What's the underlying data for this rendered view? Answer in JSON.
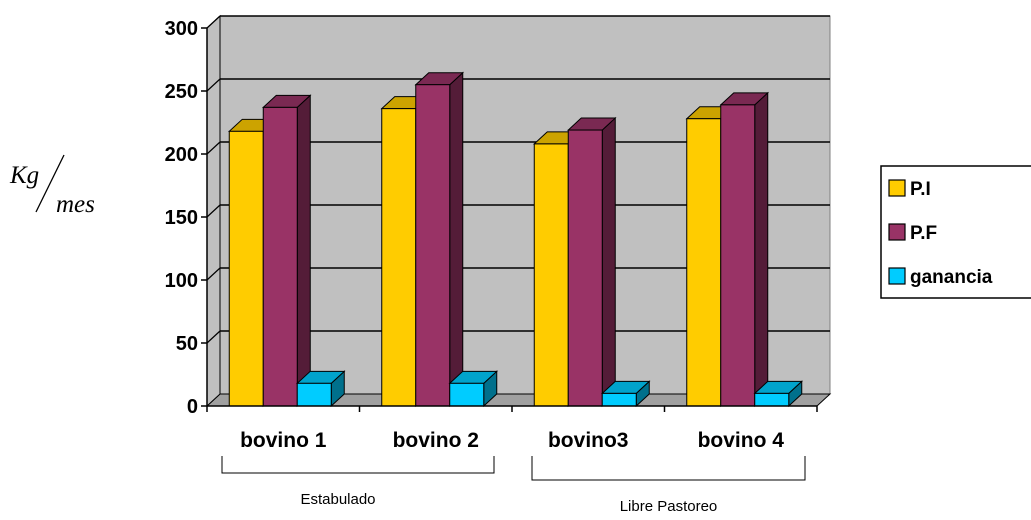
{
  "chart_data": {
    "type": "bar",
    "categories": [
      "bovino 1",
      "bovino 2",
      "bovino3",
      "bovino 4"
    ],
    "series": [
      {
        "name": "P.I",
        "values": [
          218,
          236,
          208,
          228
        ],
        "color": "#FFCC00"
      },
      {
        "name": "P.F",
        "values": [
          237,
          255,
          219,
          239
        ],
        "color": "#993366"
      },
      {
        "name": "ganancia",
        "values": [
          18,
          18,
          10,
          10
        ],
        "color": "#00CCFF"
      }
    ],
    "ylabel_numerator": "Kg",
    "ylabel_denominator": "mes",
    "ylim": [
      0,
      300
    ],
    "yticks": [
      0,
      50,
      100,
      150,
      200,
      250,
      300
    ],
    "groups": [
      {
        "label": "Estabulado",
        "categories": [
          "bovino 1",
          "bovino 2"
        ]
      },
      {
        "label": "Libre Pastoreo",
        "categories": [
          "bovino3",
          "bovino 4"
        ]
      }
    ],
    "grid": true,
    "legend_position": "right",
    "plot_background": "#C0C0C0"
  }
}
